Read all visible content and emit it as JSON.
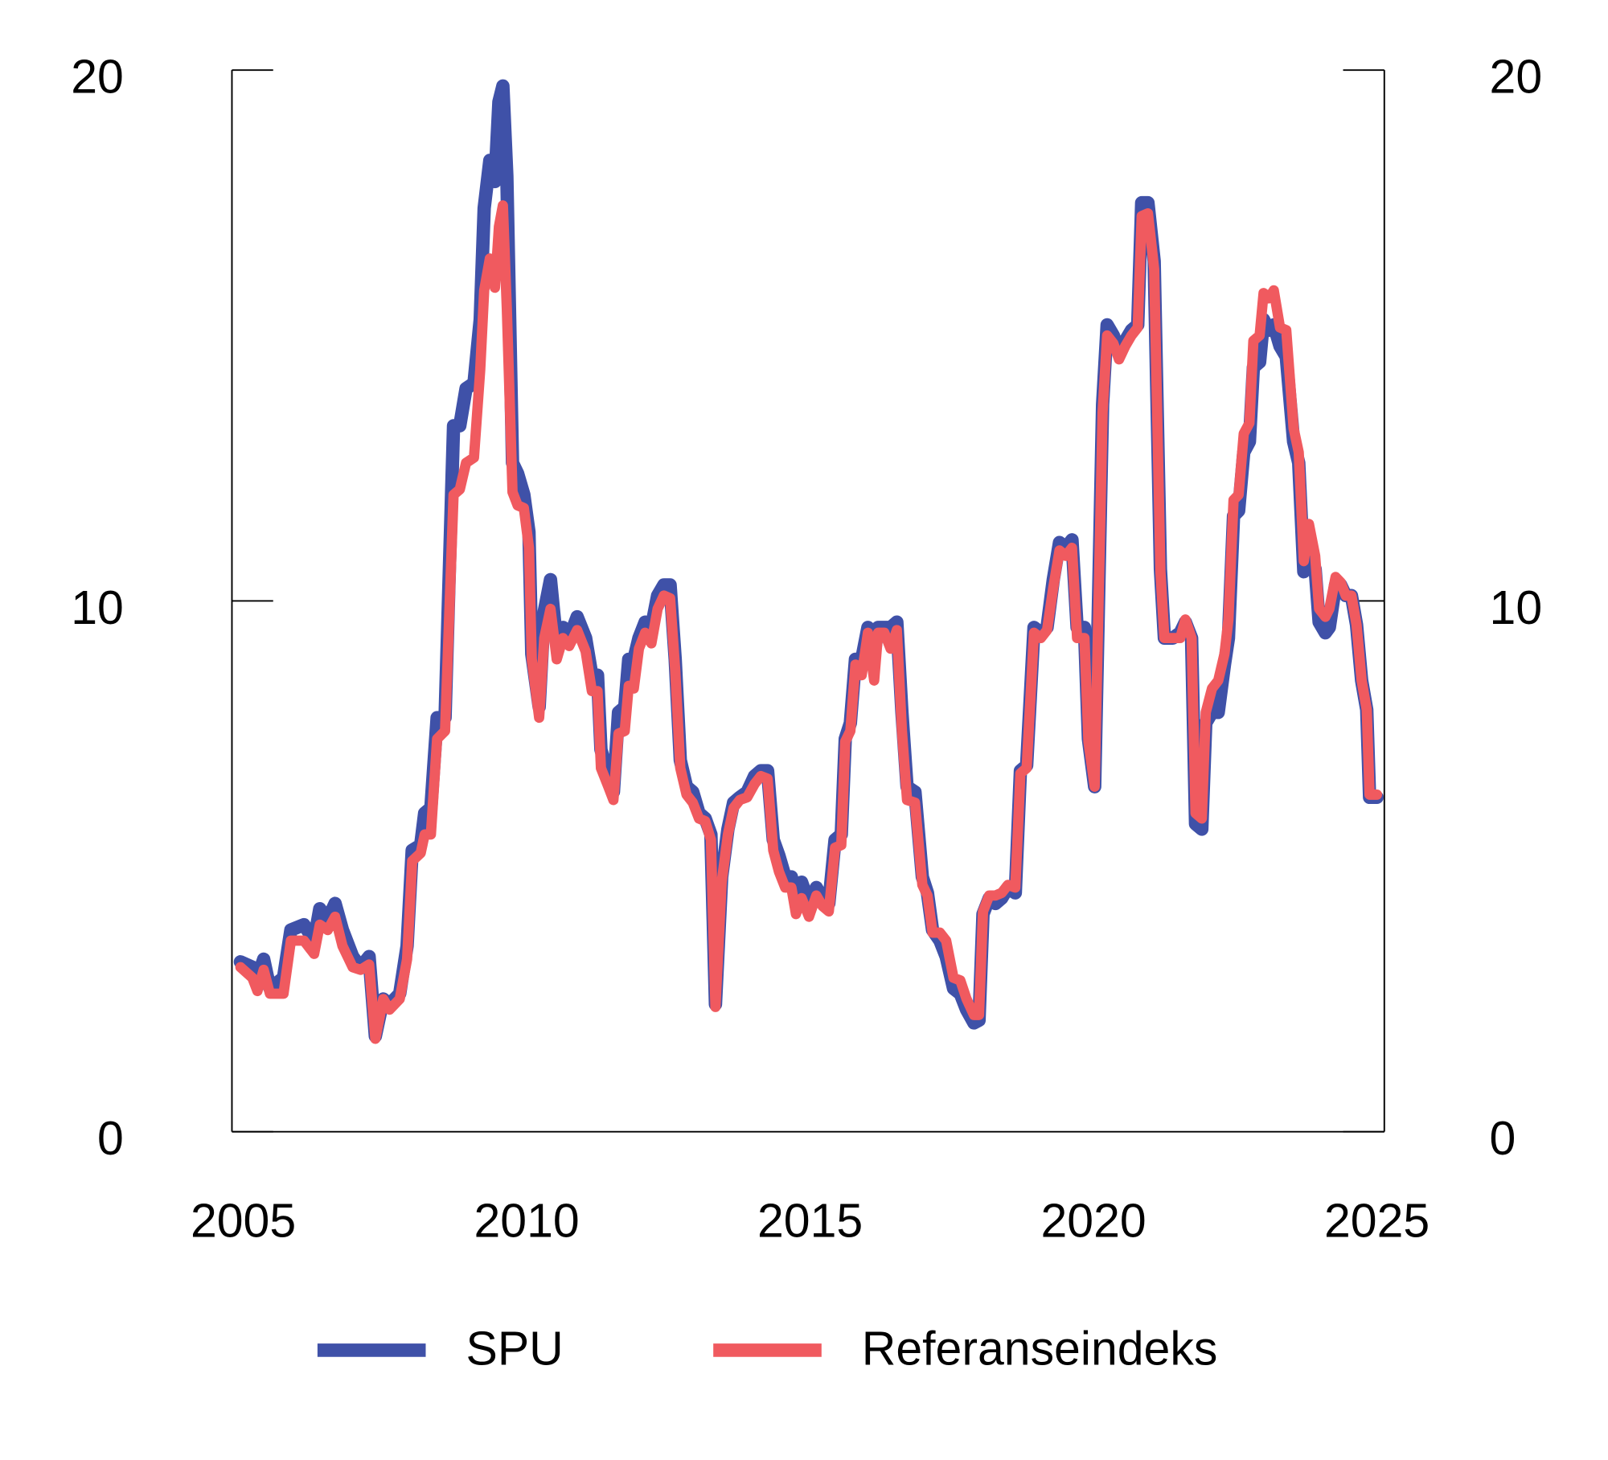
{
  "chart_data": {
    "type": "line",
    "x": [
      2004.95,
      2005.16,
      2005.25,
      2005.36,
      2005.47,
      2005.71,
      2005.84,
      2006.07,
      2006.25,
      2006.35,
      2006.49,
      2006.62,
      2006.75,
      2006.93,
      2007.07,
      2007.22,
      2007.33,
      2007.47,
      2007.58,
      2007.76,
      2007.89,
      2007.98,
      2008.13,
      2008.2,
      2008.31,
      2008.42,
      2008.56,
      2008.71,
      2008.82,
      2008.93,
      2009.07,
      2009.18,
      2009.25,
      2009.35,
      2009.44,
      2009.51,
      2009.58,
      2009.65,
      2009.75,
      2009.84,
      2009.95,
      2010.04,
      2010.09,
      2010.22,
      2010.31,
      2010.42,
      2010.53,
      2010.64,
      2010.75,
      2010.89,
      2011.04,
      2011.15,
      2011.25,
      2011.31,
      2011.44,
      2011.53,
      2011.62,
      2011.73,
      2011.8,
      2011.89,
      2011.98,
      2012.09,
      2012.2,
      2012.31,
      2012.42,
      2012.53,
      2012.62,
      2012.71,
      2012.82,
      2012.93,
      2013.04,
      2013.15,
      2013.25,
      2013.33,
      2013.44,
      2013.55,
      2013.65,
      2013.76,
      2013.89,
      2014.02,
      2014.13,
      2014.25,
      2014.35,
      2014.45,
      2014.56,
      2014.67,
      2014.75,
      2014.85,
      2014.98,
      2015.11,
      2015.22,
      2015.33,
      2015.44,
      2015.55,
      2015.62,
      2015.71,
      2015.8,
      2015.91,
      2016.02,
      2016.13,
      2016.2,
      2016.31,
      2016.42,
      2016.53,
      2016.62,
      2016.71,
      2016.85,
      2016.98,
      2017.07,
      2017.16,
      2017.29,
      2017.4,
      2017.53,
      2017.65,
      2017.76,
      2017.89,
      2017.98,
      2018.05,
      2018.16,
      2018.27,
      2018.38,
      2018.49,
      2018.62,
      2018.71,
      2018.82,
      2018.95,
      2019.07,
      2019.18,
      2019.29,
      2019.4,
      2019.51,
      2019.62,
      2019.71,
      2019.84,
      2019.91,
      2020.02,
      2020.09,
      2020.16,
      2020.24,
      2020.35,
      2020.45,
      2020.56,
      2020.67,
      2020.78,
      2020.85,
      2020.96,
      2021.07,
      2021.18,
      2021.25,
      2021.4,
      2021.53,
      2021.62,
      2021.73,
      2021.8,
      2021.91,
      2021.98,
      2022.09,
      2022.2,
      2022.31,
      2022.38,
      2022.47,
      2022.56,
      2022.65,
      2022.75,
      2022.82,
      2022.93,
      2023.0,
      2023.09,
      2023.18,
      2023.29,
      2023.4,
      2023.53,
      2023.62,
      2023.71,
      2023.8,
      2023.91,
      2023.98,
      2024.09,
      2024.16,
      2024.27,
      2024.36,
      2024.45,
      2024.55,
      2024.64,
      2024.73,
      2024.82,
      2024.87,
      2025.0
    ],
    "series": [
      {
        "name": "SPU",
        "color": "#3f51a8",
        "values": [
          3.2,
          3.1,
          2.9,
          3.25,
          2.7,
          2.9,
          3.8,
          3.9,
          3.6,
          4.2,
          4.0,
          4.3,
          3.8,
          3.3,
          3.1,
          3.3,
          1.8,
          2.5,
          2.4,
          2.6,
          3.5,
          5.3,
          5.4,
          6.0,
          6.1,
          7.8,
          7.8,
          13.3,
          13.3,
          14.0,
          14.1,
          15.3,
          17.4,
          18.3,
          17.9,
          19.4,
          19.7,
          18.0,
          12.6,
          12.4,
          12.0,
          11.3,
          9.0,
          8.0,
          9.8,
          10.4,
          9.2,
          9.5,
          9.3,
          9.7,
          9.3,
          8.6,
          8.6,
          7.2,
          6.7,
          6.4,
          7.9,
          8.0,
          8.9,
          8.9,
          9.3,
          9.6,
          9.5,
          10.1,
          10.3,
          10.3,
          8.9,
          7.0,
          6.5,
          6.4,
          6.0,
          5.9,
          5.6,
          2.4,
          4.8,
          5.7,
          6.2,
          6.3,
          6.4,
          6.7,
          6.8,
          6.8,
          5.5,
          5.2,
          4.8,
          4.8,
          4.3,
          4.7,
          4.3,
          4.6,
          4.4,
          4.3,
          5.5,
          5.6,
          7.4,
          7.7,
          8.9,
          8.9,
          9.5,
          9.0,
          9.5,
          9.5,
          9.5,
          9.6,
          7.9,
          6.5,
          6.4,
          4.8,
          4.5,
          3.8,
          3.6,
          3.3,
          2.7,
          2.6,
          2.3,
          2.05,
          2.1,
          4.1,
          4.4,
          4.3,
          4.4,
          4.6,
          4.5,
          6.8,
          6.9,
          9.5,
          9.4,
          9.5,
          10.4,
          11.1,
          11.0,
          11.15,
          9.5,
          9.5,
          7.4,
          6.5,
          10.1,
          13.7,
          15.2,
          15.0,
          14.7,
          14.9,
          15.1,
          15.2,
          17.5,
          17.5,
          16.4,
          10.6,
          9.3,
          9.3,
          9.4,
          9.6,
          9.3,
          5.8,
          5.7,
          7.7,
          7.9,
          7.9,
          8.8,
          9.3,
          11.6,
          11.7,
          12.8,
          13.0,
          14.4,
          14.5,
          15.3,
          15.1,
          15.2,
          14.8,
          14.6,
          13.0,
          12.6,
          10.55,
          10.8,
          10.6,
          9.6,
          9.4,
          9.5,
          10.3,
          10.3,
          10.1,
          10.1,
          9.55,
          8.5,
          7.95,
          6.3,
          6.3
        ]
      },
      {
        "name": "Referanseindeks",
        "color": "#f05a5f",
        "values": [
          3.1,
          2.9,
          2.65,
          3.05,
          2.6,
          2.6,
          3.6,
          3.6,
          3.35,
          3.9,
          3.8,
          4.05,
          3.5,
          3.1,
          3.05,
          3.15,
          1.75,
          2.5,
          2.3,
          2.5,
          3.25,
          5.1,
          5.25,
          5.6,
          5.6,
          7.4,
          7.55,
          12.0,
          12.1,
          12.6,
          12.7,
          14.35,
          15.85,
          16.45,
          15.9,
          17.05,
          17.45,
          15.5,
          12.05,
          11.8,
          11.75,
          11.0,
          8.9,
          7.8,
          9.3,
          9.85,
          8.9,
          9.3,
          9.15,
          9.45,
          9.05,
          8.3,
          8.3,
          6.85,
          6.5,
          6.25,
          7.5,
          7.55,
          8.4,
          8.35,
          9.1,
          9.4,
          9.2,
          9.85,
          10.1,
          10.05,
          8.7,
          6.85,
          6.35,
          6.2,
          5.9,
          5.85,
          5.5,
          2.35,
          4.7,
          5.6,
          6.1,
          6.25,
          6.3,
          6.55,
          6.7,
          6.65,
          5.3,
          4.9,
          4.6,
          4.6,
          4.1,
          4.4,
          4.05,
          4.45,
          4.25,
          4.15,
          5.35,
          5.4,
          7.35,
          7.55,
          8.8,
          8.6,
          9.4,
          8.5,
          9.4,
          9.4,
          9.1,
          9.45,
          7.55,
          6.25,
          6.2,
          4.65,
          4.45,
          3.75,
          3.75,
          3.6,
          2.9,
          2.85,
          2.5,
          2.2,
          2.2,
          4.15,
          4.45,
          4.45,
          4.5,
          4.65,
          4.6,
          6.75,
          6.85,
          9.4,
          9.3,
          9.45,
          10.25,
          10.95,
          10.85,
          11.0,
          9.3,
          9.3,
          7.35,
          6.5,
          10.05,
          13.55,
          15.0,
          14.85,
          14.55,
          14.8,
          15.0,
          15.15,
          17.25,
          17.3,
          16.25,
          10.55,
          9.3,
          9.3,
          9.3,
          9.65,
          9.3,
          6.0,
          5.9,
          7.9,
          8.35,
          8.5,
          9.0,
          9.65,
          11.9,
          12.0,
          13.15,
          13.35,
          14.9,
          15.0,
          15.8,
          15.7,
          15.85,
          15.15,
          15.1,
          13.25,
          12.8,
          10.75,
          11.45,
          10.85,
          9.85,
          9.7,
          9.85,
          10.45,
          10.35,
          10.1,
          10.1,
          9.55,
          8.5,
          7.95,
          6.35,
          6.35
        ]
      }
    ],
    "xlim": [
      2004.8,
      2025.13
    ],
    "xticks": [
      2005,
      2010,
      2015,
      2020,
      2025
    ],
    "ylim": [
      0,
      20
    ],
    "yticks": [
      0,
      10,
      20
    ],
    "y2lim": [
      0,
      20
    ],
    "y2ticks": [
      0,
      10,
      20
    ],
    "legend": "bottom"
  }
}
